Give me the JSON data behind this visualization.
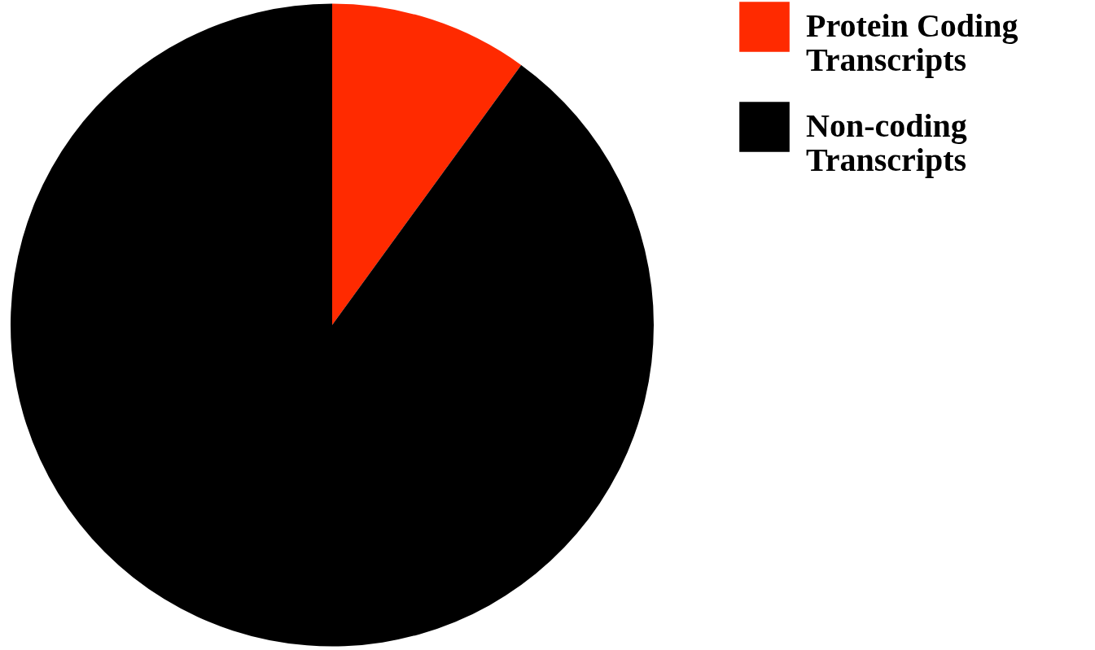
{
  "chart_data": {
    "type": "pie",
    "categories": [
      "Protein Coding Transcripts",
      "Non-coding Transcripts"
    ],
    "values": [
      10,
      90
    ],
    "colors": [
      "#ff2a00",
      "#000000"
    ],
    "legend": "right"
  }
}
